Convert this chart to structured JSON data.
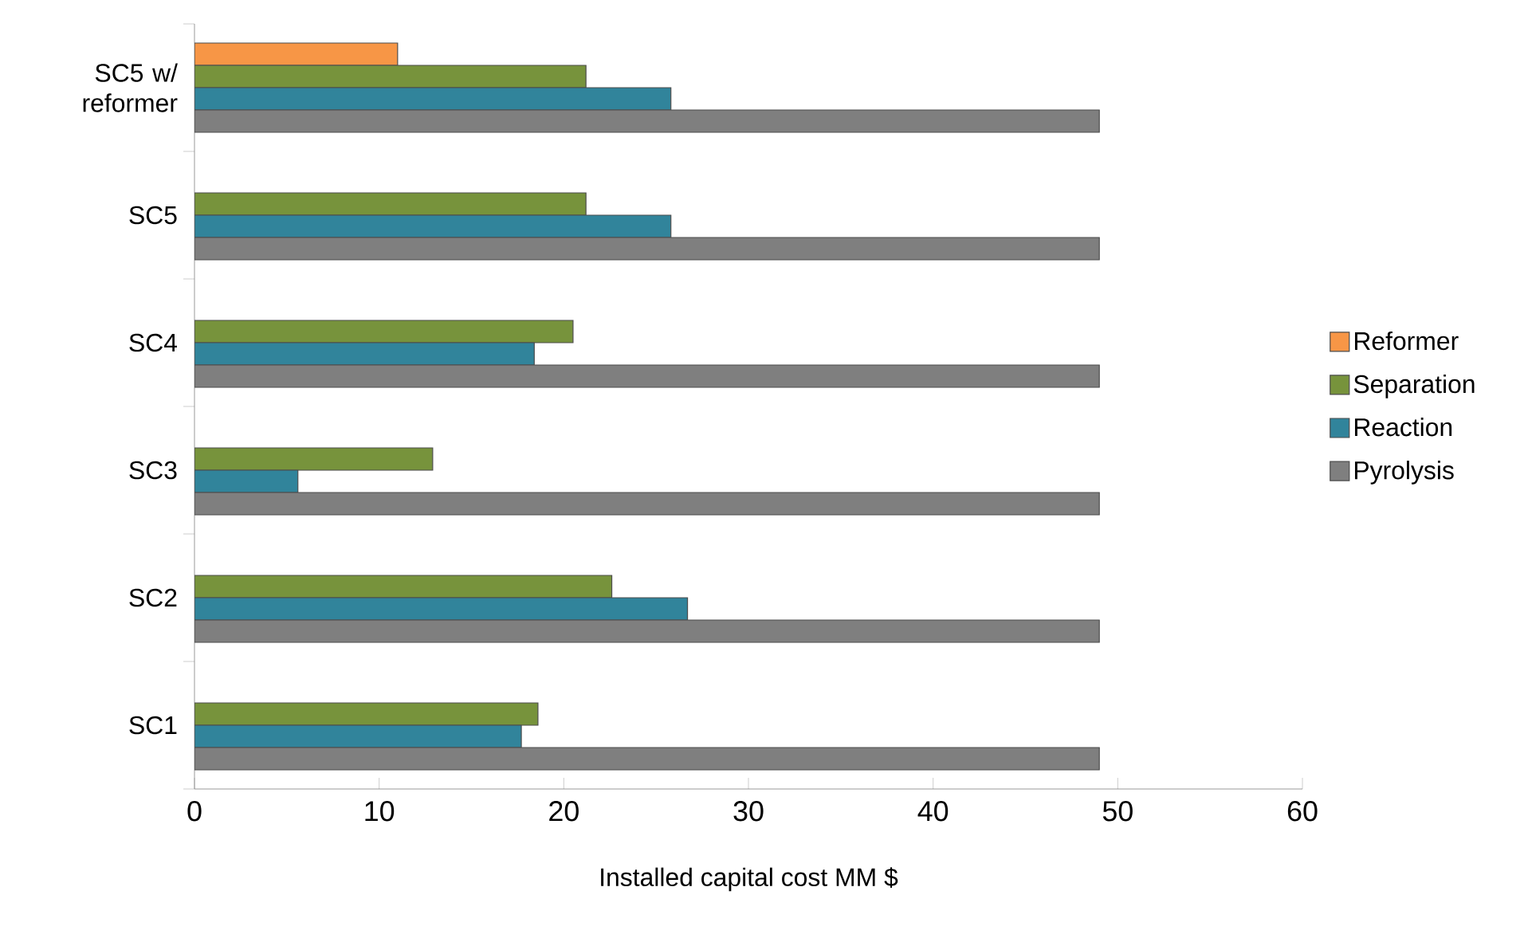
{
  "chart_data": {
    "type": "bar",
    "orientation": "horizontal",
    "xlabel": "Installed capital cost MM $",
    "categories": [
      "SC5 w/ reformer",
      "SC5",
      "SC4",
      "SC3",
      "SC2",
      "SC1"
    ],
    "series": [
      {
        "name": "Reformer",
        "color": "#f79646",
        "values": [
          11.0,
          null,
          null,
          null,
          null,
          null
        ]
      },
      {
        "name": "Separation",
        "color": "#77933c",
        "values": [
          21.2,
          21.2,
          20.5,
          12.9,
          22.6,
          18.6
        ]
      },
      {
        "name": "Reaction",
        "color": "#31849b",
        "values": [
          25.8,
          25.8,
          18.4,
          5.6,
          26.7,
          17.7
        ]
      },
      {
        "name": "Pyrolysis",
        "color": "#7f7f7f",
        "values": [
          49.0,
          49.0,
          49.0,
          49.0,
          49.0,
          49.0
        ]
      }
    ],
    "xlim": [
      0,
      60
    ],
    "xticks": [
      0,
      10,
      20,
      30,
      40,
      50,
      60
    ],
    "legend": "right",
    "grid": false
  }
}
